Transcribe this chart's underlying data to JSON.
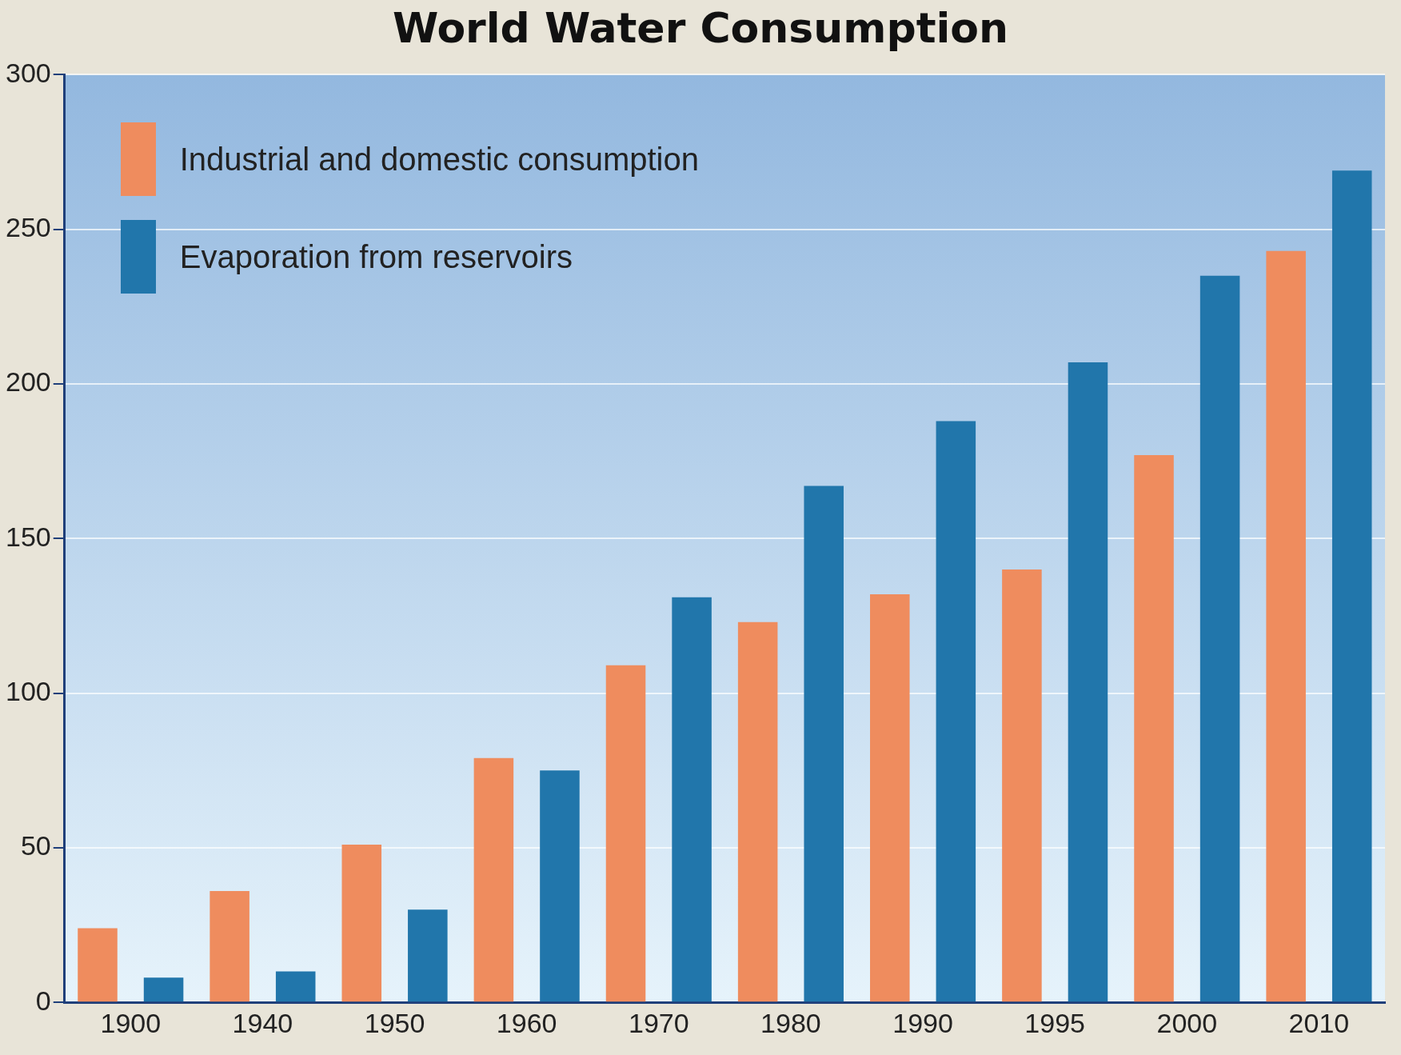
{
  "chart_data": {
    "type": "bar",
    "title": "World Water Consumption",
    "categories": [
      "1900",
      "1940",
      "1950",
      "1960",
      "1970",
      "1980",
      "1990",
      "1995",
      "2000",
      "2010"
    ],
    "series": [
      {
        "name": "Industrial and domestic consumption",
        "color": "#ef8c5e",
        "values": [
          24,
          36,
          51,
          79,
          109,
          123,
          132,
          140,
          177,
          243
        ]
      },
      {
        "name": "Evaporation from reservoirs",
        "color": "#2176ab",
        "values": [
          8,
          10,
          30,
          75,
          131,
          167,
          188,
          207,
          235,
          269
        ]
      }
    ],
    "ylim": [
      0,
      300
    ],
    "yticks": [
      0,
      50,
      100,
      150,
      200,
      250,
      300
    ],
    "grid": "y",
    "legend": "top left"
  }
}
